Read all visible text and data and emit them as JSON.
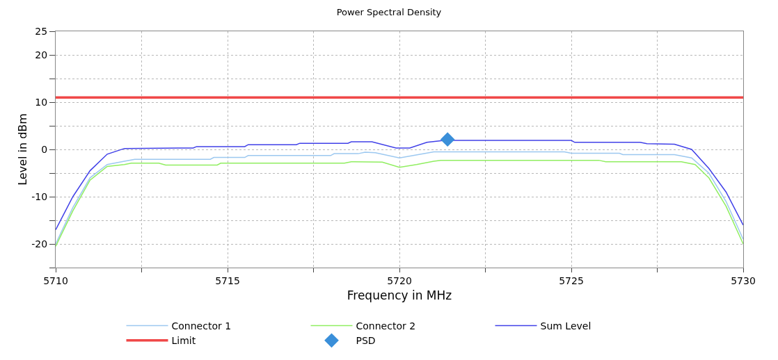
{
  "chart_data": {
    "type": "line",
    "title": "Power Spectral Density",
    "xlabel": "Frequency in MHz",
    "ylabel": "Level in dBm",
    "xlim": [
      5710,
      5730
    ],
    "xticks": [
      5710,
      {
        "value": 5712.5,
        "label": null
      },
      5715,
      {
        "value": 5717.5,
        "label": null
      },
      5720,
      {
        "value": 5722.5,
        "label": null
      },
      5725,
      {
        "value": 5727.5,
        "label": null
      },
      5730
    ],
    "ylim": [
      -25,
      25
    ],
    "yticks": [
      {
        "value": -25,
        "label": null
      },
      -20,
      {
        "value": -15,
        "label": null
      },
      -10,
      {
        "value": -5,
        "label": null
      },
      0,
      {
        "value": 5,
        "label": null
      },
      10,
      {
        "value": 15,
        "label": null
      },
      20,
      25
    ],
    "grid": true,
    "legend": "bottom",
    "marker": "none",
    "line_style": "solid",
    "series": [
      {
        "name": "Connector 1",
        "color": "#9cc8f0",
        "x": [
          5710,
          5710.5,
          5711,
          5711.5,
          5712,
          5712.3,
          5714.5,
          5714.6,
          5715.5,
          5715.6,
          5718,
          5718.1,
          5718.8,
          5719,
          5719.3,
          5720,
          5720.4,
          5721,
          5724.8,
          5725,
          5726.4,
          5726.5,
          5728,
          5728.5,
          5729,
          5729.5,
          5730
        ],
        "values": [
          -20,
          -12.3,
          -6,
          -3.2,
          -2.5,
          -2.1,
          -2.1,
          -1.7,
          -1.7,
          -1.3,
          -1.3,
          -0.9,
          -0.9,
          -0.6,
          -0.7,
          -1.8,
          -1.3,
          -0.5,
          -0.5,
          -0.8,
          -0.8,
          -1.1,
          -1.1,
          -1.8,
          -5,
          -11,
          -19
        ]
      },
      {
        "name": "Connector 2",
        "color": "#90ee60",
        "x": [
          5710,
          5710.5,
          5711,
          5711.5,
          5712,
          5712.2,
          5713,
          5713.2,
          5714.7,
          5714.8,
          5718.4,
          5718.6,
          5719.5,
          5720,
          5720.5,
          5721,
          5721.2,
          5725.8,
          5726,
          5728.2,
          5728.6,
          5729,
          5729.5,
          5730
        ],
        "values": [
          -20.5,
          -13,
          -6.5,
          -3.6,
          -3.2,
          -2.9,
          -2.9,
          -3.3,
          -3.3,
          -2.9,
          -2.9,
          -2.6,
          -2.7,
          -3.8,
          -3.2,
          -2.5,
          -2.3,
          -2.3,
          -2.6,
          -2.6,
          -3.2,
          -6,
          -12,
          -20
        ]
      },
      {
        "name": "Sum Level",
        "color": "#4040e8",
        "x": [
          5710,
          5710.5,
          5711,
          5711.5,
          5712,
          5714,
          5714.1,
          5715.5,
          5715.6,
          5717,
          5717.1,
          5718.5,
          5718.6,
          5719.2,
          5719.9,
          5720.3,
          5720.8,
          5721.3,
          5725,
          5725.1,
          5727,
          5727.2,
          5728,
          5728.5,
          5729,
          5729.5,
          5730
        ],
        "values": [
          -17,
          -10,
          -4.5,
          -1,
          0.2,
          0.3,
          0.6,
          0.6,
          1,
          1,
          1.3,
          1.3,
          1.6,
          1.6,
          0.3,
          0.3,
          1.5,
          1.9,
          1.9,
          1.5,
          1.5,
          1.2,
          1.1,
          0,
          -4,
          -9,
          -16
        ]
      },
      {
        "name": "Limit",
        "color": "#f04848",
        "x": [
          5710,
          5730
        ],
        "values": [
          11,
          11
        ]
      },
      {
        "name": "PSD",
        "type": "scatter",
        "marker": "diamond",
        "color": "#3a8fd9",
        "x": [
          5721.4
        ],
        "values": [
          2.1
        ]
      }
    ]
  }
}
